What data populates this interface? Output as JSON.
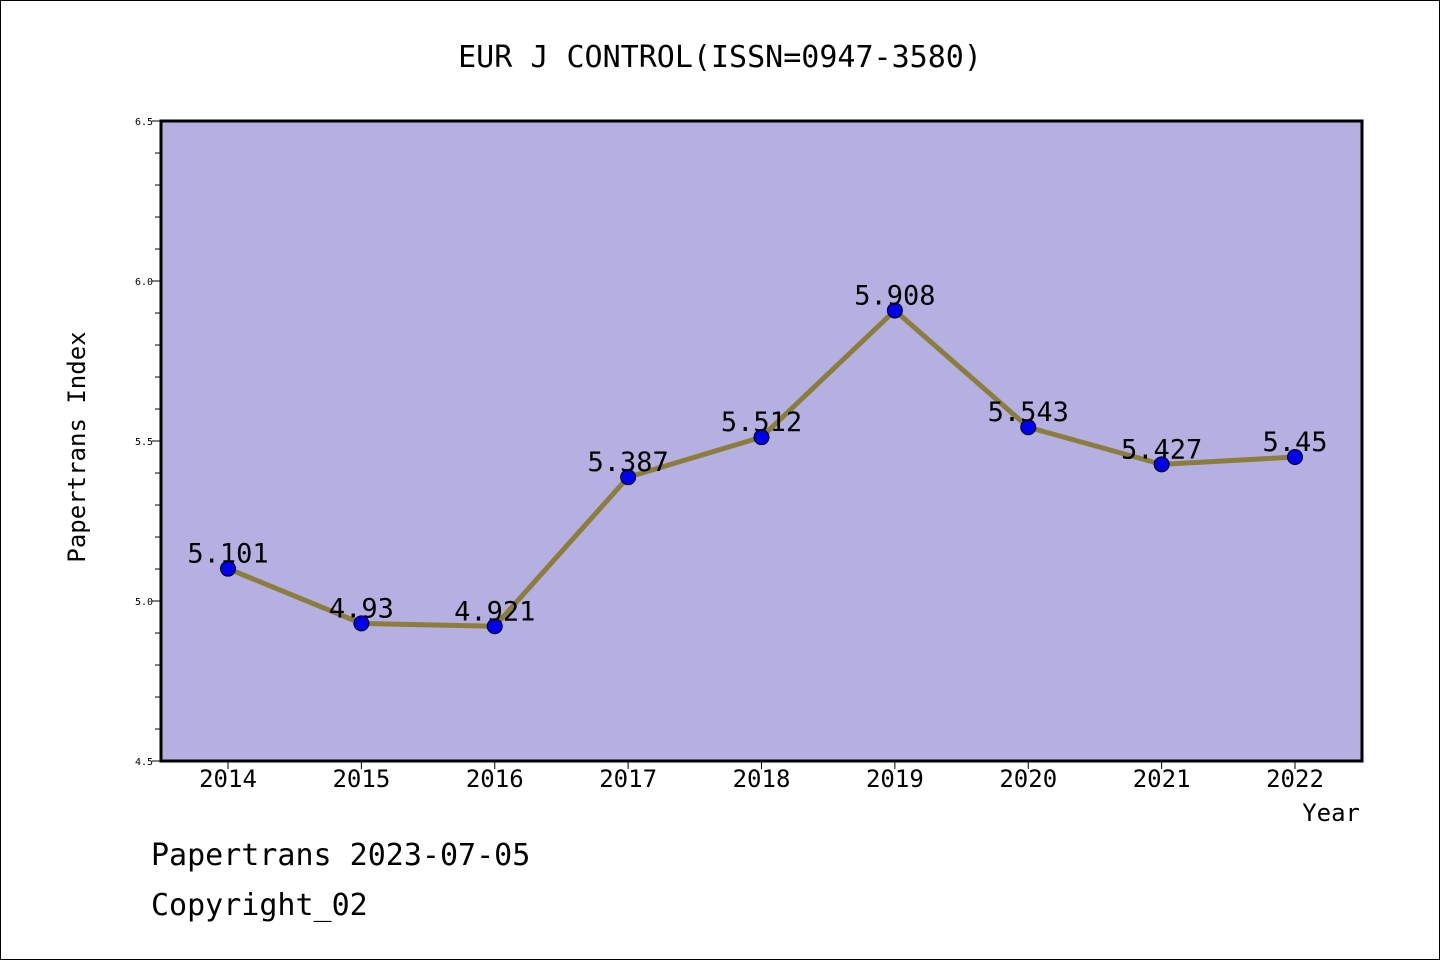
{
  "chart_data": {
    "type": "line",
    "title": "EUR J CONTROL(ISSN=0947-3580)",
    "xlabel": "Year",
    "ylabel": "Papertrans Index",
    "categories": [
      "2014",
      "2015",
      "2016",
      "2017",
      "2018",
      "2019",
      "2020",
      "2021",
      "2022"
    ],
    "values": [
      5.101,
      4.93,
      4.921,
      5.387,
      5.512,
      5.908,
      5.543,
      5.427,
      5.45
    ],
    "data_labels": [
      "5.101",
      "4.93",
      "4.921",
      "5.387",
      "5.512",
      "5.908",
      "5.543",
      "5.427",
      "5.45"
    ],
    "ylim": [
      4.5,
      6.5
    ],
    "yticks": [
      "4.5",
      "5.0",
      "5.5",
      "6.0",
      "6.5"
    ],
    "grid": false,
    "legend": "none",
    "colors": {
      "plot_background": "#b5b0e2",
      "line": "#8b7d3c",
      "marker": "#0000ee"
    }
  },
  "footer": {
    "line1": "Papertrans 2023-07-05",
    "line2": "Copyright_02"
  }
}
